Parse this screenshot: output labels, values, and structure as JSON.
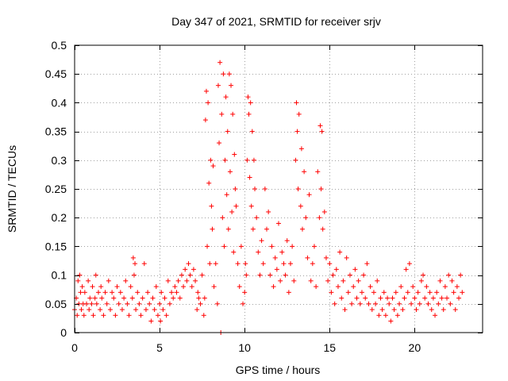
{
  "chart_data": {
    "type": "scatter",
    "title": "Day 347 of 2021, SRMTID for receiver srjv",
    "xlabel": "GPS time / hours",
    "ylabel": "SRMTID / TECUs",
    "xlim": [
      0,
      24
    ],
    "ylim": [
      0,
      0.5
    ],
    "grid": true,
    "marker": "+",
    "color": "#ff0000",
    "x_ticks": [
      0,
      5,
      10,
      15,
      20
    ],
    "x_tick_labels": [
      "0",
      "5",
      "10",
      "15",
      "20"
    ],
    "y_ticks": [
      0,
      0.05,
      0.1,
      0.15,
      0.2,
      0.25,
      0.3,
      0.35,
      0.4,
      0.45,
      0.5
    ],
    "y_tick_labels": [
      "0",
      "0.05",
      "0.1",
      "0.15",
      "0.2",
      "0.25",
      "0.3",
      "0.35",
      "0.4",
      "0.45",
      "0.5"
    ],
    "series": [
      {
        "name": "SRMTID",
        "points": [
          [
            0.0,
            0.04
          ],
          [
            0.1,
            0.06
          ],
          [
            0.15,
            0.03
          ],
          [
            0.2,
            0.09
          ],
          [
            0.25,
            0.05
          ],
          [
            0.3,
            0.1
          ],
          [
            0.35,
            0.07
          ],
          [
            0.4,
            0.04
          ],
          [
            0.45,
            0.08
          ],
          [
            0.5,
            0.05
          ],
          [
            0.55,
            0.03
          ],
          [
            0.6,
            0.07
          ],
          [
            0.7,
            0.05
          ],
          [
            0.8,
            0.09
          ],
          [
            0.85,
            0.04
          ],
          [
            0.9,
            0.06
          ],
          [
            1.0,
            0.05
          ],
          [
            1.05,
            0.08
          ],
          [
            1.1,
            0.03
          ],
          [
            1.2,
            0.06
          ],
          [
            1.25,
            0.1
          ],
          [
            1.3,
            0.05
          ],
          [
            1.4,
            0.07
          ],
          [
            1.5,
            0.04
          ],
          [
            1.55,
            0.08
          ],
          [
            1.6,
            0.06
          ],
          [
            1.7,
            0.03
          ],
          [
            1.8,
            0.07
          ],
          [
            1.9,
            0.05
          ],
          [
            2.0,
            0.09
          ],
          [
            2.1,
            0.04
          ],
          [
            2.2,
            0.07
          ],
          [
            2.3,
            0.06
          ],
          [
            2.4,
            0.03
          ],
          [
            2.5,
            0.08
          ],
          [
            2.6,
            0.05
          ],
          [
            2.7,
            0.07
          ],
          [
            2.8,
            0.04
          ],
          [
            2.9,
            0.06
          ],
          [
            3.0,
            0.09
          ],
          [
            3.1,
            0.05
          ],
          [
            3.2,
            0.03
          ],
          [
            3.3,
            0.08
          ],
          [
            3.4,
            0.06
          ],
          [
            3.45,
            0.13
          ],
          [
            3.5,
            0.1
          ],
          [
            3.55,
            0.12
          ],
          [
            3.6,
            0.04
          ],
          [
            3.7,
            0.07
          ],
          [
            3.8,
            0.05
          ],
          [
            3.9,
            0.03
          ],
          [
            4.0,
            0.06
          ],
          [
            4.1,
            0.12
          ],
          [
            4.2,
            0.04
          ],
          [
            4.3,
            0.07
          ],
          [
            4.4,
            0.05
          ],
          [
            4.5,
            0.02
          ],
          [
            4.6,
            0.06
          ],
          [
            4.7,
            0.04
          ],
          [
            4.8,
            0.08
          ],
          [
            4.9,
            0.03
          ],
          [
            5.0,
            0.05
          ],
          [
            5.05,
            0.02
          ],
          [
            5.1,
            0.07
          ],
          [
            5.2,
            0.04
          ],
          [
            5.3,
            0.06
          ],
          [
            5.4,
            0.03
          ],
          [
            5.5,
            0.09
          ],
          [
            5.6,
            0.05
          ],
          [
            5.7,
            0.07
          ],
          [
            5.8,
            0.06
          ],
          [
            5.9,
            0.08
          ],
          [
            6.0,
            0.07
          ],
          [
            6.1,
            0.09
          ],
          [
            6.2,
            0.06
          ],
          [
            6.3,
            0.1
          ],
          [
            6.4,
            0.08
          ],
          [
            6.5,
            0.11
          ],
          [
            6.6,
            0.09
          ],
          [
            6.7,
            0.12
          ],
          [
            6.8,
            0.1
          ],
          [
            6.9,
            0.08
          ],
          [
            7.0,
            0.11
          ],
          [
            7.1,
            0.09
          ],
          [
            7.2,
            0.04
          ],
          [
            7.25,
            0.07
          ],
          [
            7.3,
            0.06
          ],
          [
            7.4,
            0.05
          ],
          [
            7.5,
            0.1
          ],
          [
            7.6,
            0.03
          ],
          [
            7.65,
            0.06
          ],
          [
            7.7,
            0.37
          ],
          [
            7.75,
            0.42
          ],
          [
            7.8,
            0.15
          ],
          [
            7.85,
            0.4
          ],
          [
            7.9,
            0.26
          ],
          [
            7.95,
            0.12
          ],
          [
            8.0,
            0.3
          ],
          [
            8.05,
            0.22
          ],
          [
            8.1,
            0.18
          ],
          [
            8.15,
            0.29
          ],
          [
            8.2,
            0.08
          ],
          [
            8.3,
            0.12
          ],
          [
            8.4,
            0.05
          ],
          [
            8.45,
            0.43
          ],
          [
            8.5,
            0.33
          ],
          [
            8.55,
            0.47
          ],
          [
            8.6,
            0.0
          ],
          [
            8.65,
            0.38
          ],
          [
            8.7,
            0.2
          ],
          [
            8.75,
            0.45
          ],
          [
            8.8,
            0.15
          ],
          [
            8.85,
            0.3
          ],
          [
            8.9,
            0.41
          ],
          [
            8.95,
            0.24
          ],
          [
            9.0,
            0.35
          ],
          [
            9.05,
            0.18
          ],
          [
            9.1,
            0.45
          ],
          [
            9.15,
            0.28
          ],
          [
            9.2,
            0.43
          ],
          [
            9.25,
            0.21
          ],
          [
            9.3,
            0.38
          ],
          [
            9.35,
            0.14
          ],
          [
            9.4,
            0.31
          ],
          [
            9.45,
            0.25
          ],
          [
            9.5,
            0.22
          ],
          [
            9.6,
            0.12
          ],
          [
            9.7,
            0.08
          ],
          [
            9.8,
            0.15
          ],
          [
            9.9,
            0.05
          ],
          [
            10.0,
            0.07
          ],
          [
            10.05,
            0.12
          ],
          [
            10.1,
            0.1
          ],
          [
            10.15,
            0.3
          ],
          [
            10.2,
            0.41
          ],
          [
            10.25,
            0.38
          ],
          [
            10.3,
            0.27
          ],
          [
            10.35,
            0.4
          ],
          [
            10.4,
            0.22
          ],
          [
            10.45,
            0.35
          ],
          [
            10.5,
            0.18
          ],
          [
            10.55,
            0.3
          ],
          [
            10.6,
            0.25
          ],
          [
            10.7,
            0.2
          ],
          [
            10.8,
            0.14
          ],
          [
            10.9,
            0.1
          ],
          [
            11.0,
            0.16
          ],
          [
            11.1,
            0.12
          ],
          [
            11.2,
            0.25
          ],
          [
            11.3,
            0.18
          ],
          [
            11.4,
            0.21
          ],
          [
            11.5,
            0.1
          ],
          [
            11.6,
            0.15
          ],
          [
            11.7,
            0.08
          ],
          [
            11.8,
            0.13
          ],
          [
            11.9,
            0.11
          ],
          [
            12.0,
            0.19
          ],
          [
            12.1,
            0.09
          ],
          [
            12.2,
            0.14
          ],
          [
            12.3,
            0.12
          ],
          [
            12.4,
            0.1
          ],
          [
            12.5,
            0.16
          ],
          [
            12.6,
            0.07
          ],
          [
            12.7,
            0.12
          ],
          [
            12.8,
            0.15
          ],
          [
            12.9,
            0.09
          ],
          [
            13.0,
            0.3
          ],
          [
            13.05,
            0.4
          ],
          [
            13.1,
            0.35
          ],
          [
            13.15,
            0.25
          ],
          [
            13.2,
            0.38
          ],
          [
            13.3,
            0.22
          ],
          [
            13.35,
            0.32
          ],
          [
            13.4,
            0.18
          ],
          [
            13.5,
            0.28
          ],
          [
            13.6,
            0.2
          ],
          [
            13.7,
            0.13
          ],
          [
            13.8,
            0.24
          ],
          [
            13.9,
            0.09
          ],
          [
            14.0,
            0.12
          ],
          [
            14.1,
            0.15
          ],
          [
            14.2,
            0.08
          ],
          [
            14.3,
            0.28
          ],
          [
            14.4,
            0.2
          ],
          [
            14.45,
            0.36
          ],
          [
            14.5,
            0.25
          ],
          [
            14.55,
            0.35
          ],
          [
            14.6,
            0.18
          ],
          [
            14.7,
            0.21
          ],
          [
            14.8,
            0.13
          ],
          [
            14.9,
            0.09
          ],
          [
            15.0,
            0.12
          ],
          [
            15.1,
            0.07
          ],
          [
            15.2,
            0.1
          ],
          [
            15.3,
            0.05
          ],
          [
            15.4,
            0.11
          ],
          [
            15.5,
            0.08
          ],
          [
            15.6,
            0.14
          ],
          [
            15.7,
            0.06
          ],
          [
            15.8,
            0.09
          ],
          [
            15.9,
            0.04
          ],
          [
            16.0,
            0.13
          ],
          [
            16.1,
            0.07
          ],
          [
            16.2,
            0.1
          ],
          [
            16.3,
            0.05
          ],
          [
            16.4,
            0.08
          ],
          [
            16.5,
            0.11
          ],
          [
            16.6,
            0.06
          ],
          [
            16.7,
            0.09
          ],
          [
            16.8,
            0.05
          ],
          [
            16.9,
            0.07
          ],
          [
            17.0,
            0.1
          ],
          [
            17.1,
            0.06
          ],
          [
            17.2,
            0.12
          ],
          [
            17.3,
            0.05
          ],
          [
            17.4,
            0.08
          ],
          [
            17.5,
            0.04
          ],
          [
            17.6,
            0.07
          ],
          [
            17.7,
            0.05
          ],
          [
            17.8,
            0.09
          ],
          [
            17.9,
            0.03
          ],
          [
            18.0,
            0.06
          ],
          [
            18.1,
            0.04
          ],
          [
            18.2,
            0.07
          ],
          [
            18.3,
            0.03
          ],
          [
            18.4,
            0.06
          ],
          [
            18.5,
            0.05
          ],
          [
            18.6,
            0.02
          ],
          [
            18.7,
            0.06
          ],
          [
            18.8,
            0.04
          ],
          [
            18.9,
            0.07
          ],
          [
            19.0,
            0.03
          ],
          [
            19.1,
            0.05
          ],
          [
            19.2,
            0.08
          ],
          [
            19.3,
            0.04
          ],
          [
            19.4,
            0.06
          ],
          [
            19.5,
            0.11
          ],
          [
            19.6,
            0.07
          ],
          [
            19.7,
            0.12
          ],
          [
            19.8,
            0.05
          ],
          [
            19.9,
            0.08
          ],
          [
            20.0,
            0.06
          ],
          [
            20.1,
            0.04
          ],
          [
            20.2,
            0.07
          ],
          [
            20.3,
            0.05
          ],
          [
            20.4,
            0.09
          ],
          [
            20.5,
            0.1
          ],
          [
            20.6,
            0.06
          ],
          [
            20.7,
            0.08
          ],
          [
            20.8,
            0.05
          ],
          [
            20.9,
            0.07
          ],
          [
            21.0,
            0.04
          ],
          [
            21.1,
            0.06
          ],
          [
            21.2,
            0.03
          ],
          [
            21.3,
            0.07
          ],
          [
            21.4,
            0.05
          ],
          [
            21.5,
            0.09
          ],
          [
            21.6,
            0.06
          ],
          [
            21.7,
            0.04
          ],
          [
            21.8,
            0.08
          ],
          [
            21.9,
            0.06
          ],
          [
            22.0,
            0.1
          ],
          [
            22.1,
            0.05
          ],
          [
            22.2,
            0.09
          ],
          [
            22.3,
            0.07
          ],
          [
            22.4,
            0.04
          ],
          [
            22.5,
            0.08
          ],
          [
            22.6,
            0.06
          ],
          [
            22.7,
            0.1
          ],
          [
            22.8,
            0.07
          ]
        ]
      }
    ]
  }
}
